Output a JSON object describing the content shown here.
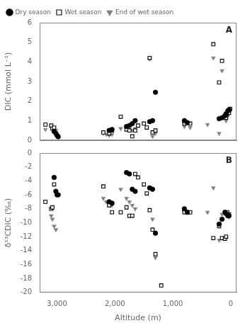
{
  "chart_data": [
    {
      "type": "scatter",
      "y_label": "DIC (mmol L⁻¹)",
      "annotations": [
        "A"
      ],
      "legend": "upper left",
      "grid": false,
      "tick_labels": "y",
      "xlim": [
        3300,
        -100
      ],
      "xticks": [
        3000,
        2000,
        1000,
        0
      ],
      "ylim": [
        0,
        6
      ],
      "yticks": [
        0,
        1,
        2,
        3,
        4,
        5,
        6
      ],
      "series": [
        {
          "name": "Dry season",
          "color": "#000000",
          "marker": "circle",
          "x": [
            3050,
            3020,
            3000,
            2980,
            2100,
            2050,
            1800,
            1750,
            1700,
            1650,
            1400,
            1350,
            1300,
            800,
            750,
            200,
            150,
            100,
            80,
            50,
            30
          ],
          "values": [
            0.45,
            0.35,
            0.25,
            0.18,
            0.5,
            0.55,
            0.7,
            0.75,
            0.85,
            1.0,
            0.95,
            1.0,
            2.45,
            1.0,
            0.9,
            1.1,
            1.15,
            1.25,
            1.35,
            1.5,
            1.55
          ]
        },
        {
          "name": "Wet season",
          "color": "#000000",
          "marker": "open_square",
          "x": [
            3200,
            3100,
            3080,
            3050,
            2200,
            2100,
            2050,
            1900,
            1800,
            1750,
            1700,
            1650,
            1600,
            1500,
            1450,
            1400,
            1350,
            1300,
            800,
            700,
            300,
            200,
            150,
            100,
            80,
            60,
            30,
            10
          ],
          "values": [
            0.8,
            0.75,
            0.6,
            0.65,
            0.4,
            0.35,
            0.5,
            1.2,
            0.55,
            0.5,
            0.2,
            0.5,
            0.75,
            0.85,
            0.65,
            4.2,
            0.4,
            0.5,
            0.85,
            0.85,
            4.9,
            2.95,
            4.05,
            1.2,
            1.15,
            1.35,
            1.4,
            1.6
          ]
        },
        {
          "name": "End of wet season",
          "color": "#808080",
          "marker": "triangle_down",
          "x": [
            3200,
            3100,
            3080,
            3050,
            3020,
            2200,
            2150,
            2100,
            2050,
            1900,
            1800,
            1750,
            1700,
            1650,
            1400,
            1350,
            1300,
            800,
            700,
            400,
            300,
            200,
            150,
            100,
            80,
            60,
            30,
            10
          ],
          "values": [
            0.55,
            0.7,
            0.65,
            0.6,
            0.5,
            0.35,
            0.3,
            0.25,
            0.3,
            0.6,
            0.65,
            0.55,
            0.5,
            0.6,
            4.15,
            0.2,
            0.35,
            0.7,
            0.65,
            0.8,
            4.2,
            0.35,
            3.55,
            1.1,
            1.0,
            1.2,
            1.4,
            1.5
          ]
        }
      ]
    },
    {
      "type": "scatter",
      "x_label": "Altitude (m)",
      "y_label": "δ¹³CDIC (‰)",
      "annotations": [
        "B"
      ],
      "grid": false,
      "xlim": [
        3300,
        -100
      ],
      "xticks": [
        3000,
        2000,
        1000,
        0
      ],
      "ylim": [
        -20,
        0
      ],
      "yticks": [
        0,
        -2,
        -4,
        -6,
        -8,
        -10,
        -12,
        -14,
        -16,
        -18,
        -20
      ],
      "series": [
        {
          "color": "#000000",
          "marker": "circle",
          "x": [
            3050,
            3020,
            3000,
            2980,
            2100,
            2050,
            1800,
            1750,
            1700,
            1650,
            1400,
            1350,
            1300,
            800,
            750,
            200,
            150,
            100,
            80,
            50,
            30
          ],
          "values": [
            -3.5,
            -5.5,
            -6.0,
            -6.0,
            -7.0,
            -7.2,
            -2.8,
            -3.0,
            -5.2,
            -5.5,
            -5.0,
            -5.2,
            -11.5,
            -8.0,
            -8.5,
            -10.2,
            -9.5,
            -8.5,
            -8.7,
            -9.0,
            -9.0
          ]
        },
        {
          "color": "#000000",
          "marker": "open_square",
          "x": [
            3200,
            3100,
            3080,
            3050,
            2200,
            2100,
            2050,
            1900,
            1800,
            1750,
            1700,
            1650,
            1600,
            1500,
            1450,
            1400,
            1350,
            1300,
            1200,
            800,
            700,
            300,
            200,
            150,
            100,
            80,
            60,
            30
          ],
          "values": [
            -7.0,
            -8.0,
            -7.8,
            -4.5,
            -4.8,
            -7.5,
            -8.5,
            -8.5,
            -7.8,
            -9.0,
            -9.0,
            -3.0,
            -3.5,
            -4.5,
            -5.8,
            -8.2,
            -11.0,
            -14.5,
            -19.0,
            -8.5,
            -8.5,
            -12.2,
            -10.5,
            -12.2,
            -12.3,
            -12.0,
            -8.5,
            -8.8
          ]
        },
        {
          "color": "#808080",
          "marker": "triangle_down",
          "x": [
            3200,
            3100,
            3080,
            3050,
            3020,
            2200,
            2150,
            2100,
            2050,
            1900,
            1800,
            1750,
            1700,
            1650,
            1400,
            1350,
            1300,
            800,
            700,
            400,
            300,
            200,
            150,
            100,
            80,
            60,
            30
          ],
          "values": [
            -7.0,
            -9.0,
            -9.5,
            -10.5,
            -11.0,
            -6.5,
            -7.0,
            -7.2,
            -7.5,
            -5.2,
            -6.5,
            -7.0,
            -7.5,
            -8.0,
            -5.0,
            -9.5,
            -15.0,
            -8.5,
            -8.5,
            -8.5,
            -5.0,
            -12.5,
            -8.8,
            -8.5,
            -8.5,
            -9.0,
            -9.2
          ]
        }
      ]
    }
  ]
}
